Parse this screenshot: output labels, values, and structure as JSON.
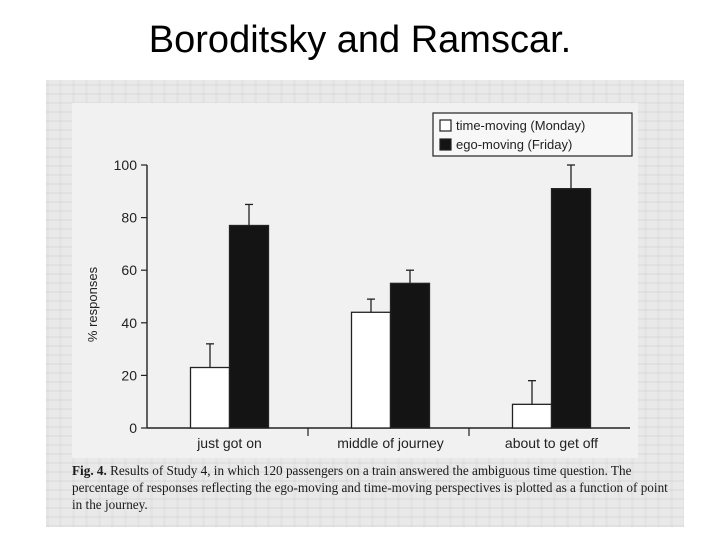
{
  "slide": {
    "title": "Boroditsky and Ramscar."
  },
  "caption": {
    "label": "Fig. 4.",
    "text": "Results of Study 4, in which 120 passengers on a train answered the ambiguous time question. The percentage of responses reflecting the ego-moving and time-moving perspectives is plotted as a function of point in the journey."
  },
  "chart_data": {
    "type": "bar",
    "title": "",
    "xlabel": "",
    "ylabel": "% responses",
    "ylim": [
      0,
      100
    ],
    "yticks": [
      0,
      20,
      40,
      60,
      80,
      100
    ],
    "grid": false,
    "legend_position": "top-right",
    "categories": [
      "just got on",
      "middle of journey",
      "about to get off"
    ],
    "series": [
      {
        "name": "time-moving (Monday)",
        "color": "#ffffff",
        "values": [
          23,
          44,
          9
        ],
        "errors": [
          9,
          5,
          9
        ]
      },
      {
        "name": "ego-moving (Friday)",
        "color": "#141414",
        "values": [
          77,
          55,
          91
        ],
        "errors": [
          8,
          5,
          9
        ]
      }
    ]
  }
}
